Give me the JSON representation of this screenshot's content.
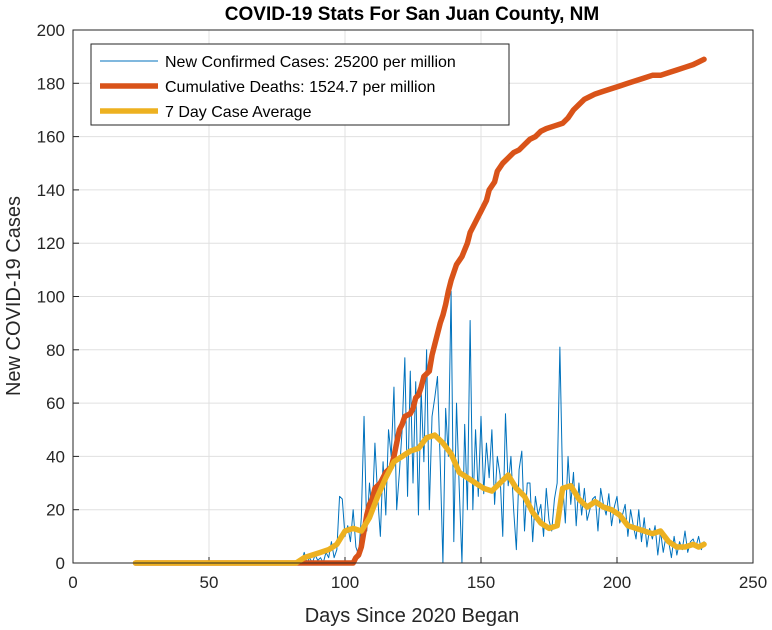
{
  "chart_data": {
    "type": "line",
    "title": "COVID-19 Stats For San Juan County, NM",
    "xlabel": "Days Since 2020 Began",
    "ylabel": "New COVID-19 Cases",
    "xlim": [
      0,
      250
    ],
    "ylim": [
      0,
      200
    ],
    "xticks": [
      0,
      50,
      100,
      150,
      200,
      250
    ],
    "yticks": [
      0,
      20,
      40,
      60,
      80,
      100,
      120,
      140,
      160,
      180,
      200
    ],
    "grid": true,
    "legend_position": "top-left",
    "series": [
      {
        "name": "New Confirmed Cases: 25200 per million",
        "color": "#0072BD",
        "points": [
          [
            23,
            0
          ],
          [
            84,
            0
          ],
          [
            85,
            4
          ],
          [
            86,
            0
          ],
          [
            87,
            2
          ],
          [
            88,
            0
          ],
          [
            89,
            3
          ],
          [
            90,
            1
          ],
          [
            91,
            2
          ],
          [
            92,
            0
          ],
          [
            93,
            4
          ],
          [
            94,
            2
          ],
          [
            95,
            8
          ],
          [
            96,
            2
          ],
          [
            97,
            5
          ],
          [
            98,
            25
          ],
          [
            99,
            24
          ],
          [
            100,
            10
          ],
          [
            101,
            14
          ],
          [
            102,
            8
          ],
          [
            103,
            20
          ],
          [
            104,
            6
          ],
          [
            105,
            3
          ],
          [
            106,
            17
          ],
          [
            107,
            55
          ],
          [
            108,
            12
          ],
          [
            109,
            30
          ],
          [
            110,
            18
          ],
          [
            111,
            45
          ],
          [
            112,
            25
          ],
          [
            113,
            10
          ],
          [
            114,
            38
          ],
          [
            115,
            18
          ],
          [
            116,
            50
          ],
          [
            117,
            40
          ],
          [
            118,
            66
          ],
          [
            119,
            20
          ],
          [
            120,
            34
          ],
          [
            121,
            50
          ],
          [
            122,
            77
          ],
          [
            123,
            25
          ],
          [
            124,
            72
          ],
          [
            125,
            30
          ],
          [
            126,
            68
          ],
          [
            127,
            18
          ],
          [
            128,
            65
          ],
          [
            129,
            38
          ],
          [
            130,
            80
          ],
          [
            131,
            20
          ],
          [
            132,
            55
          ],
          [
            133,
            62
          ],
          [
            134,
            70
          ],
          [
            135,
            38
          ],
          [
            136,
            0
          ],
          [
            137,
            58
          ],
          [
            138,
            40
          ],
          [
            139,
            102
          ],
          [
            140,
            8
          ],
          [
            141,
            60
          ],
          [
            142,
            28
          ],
          [
            143,
            0
          ],
          [
            144,
            52
          ],
          [
            145,
            20
          ],
          [
            146,
            91
          ],
          [
            147,
            20
          ],
          [
            148,
            50
          ],
          [
            149,
            25
          ],
          [
            150,
            55
          ],
          [
            151,
            26
          ],
          [
            152,
            45
          ],
          [
            153,
            32
          ],
          [
            154,
            50
          ],
          [
            155,
            22
          ],
          [
            156,
            40
          ],
          [
            157,
            33
          ],
          [
            158,
            10
          ],
          [
            159,
            56
          ],
          [
            160,
            29
          ],
          [
            161,
            40
          ],
          [
            162,
            20
          ],
          [
            163,
            5
          ],
          [
            164,
            35
          ],
          [
            165,
            42
          ],
          [
            166,
            12
          ],
          [
            167,
            30
          ],
          [
            168,
            30
          ],
          [
            169,
            8
          ],
          [
            170,
            25
          ],
          [
            171,
            18
          ],
          [
            172,
            22
          ],
          [
            173,
            10
          ],
          [
            174,
            28
          ],
          [
            175,
            16
          ],
          [
            176,
            12
          ],
          [
            177,
            24
          ],
          [
            178,
            30
          ],
          [
            179,
            81
          ],
          [
            180,
            30
          ],
          [
            181,
            15
          ],
          [
            182,
            40
          ],
          [
            183,
            22
          ],
          [
            184,
            34
          ],
          [
            185,
            14
          ],
          [
            186,
            30
          ],
          [
            187,
            18
          ],
          [
            188,
            28
          ],
          [
            189,
            16
          ],
          [
            190,
            20
          ],
          [
            191,
            24
          ],
          [
            192,
            25
          ],
          [
            193,
            12
          ],
          [
            194,
            28
          ],
          [
            195,
            22
          ],
          [
            196,
            18
          ],
          [
            197,
            26
          ],
          [
            198,
            14
          ],
          [
            199,
            21
          ],
          [
            200,
            25
          ],
          [
            201,
            15
          ],
          [
            202,
            18
          ],
          [
            203,
            22
          ],
          [
            204,
            10
          ],
          [
            205,
            20
          ],
          [
            206,
            14
          ],
          [
            207,
            9
          ],
          [
            208,
            20
          ],
          [
            209,
            8
          ],
          [
            210,
            17
          ],
          [
            211,
            6
          ],
          [
            212,
            13
          ],
          [
            213,
            9
          ],
          [
            214,
            14
          ],
          [
            215,
            3
          ],
          [
            216,
            12
          ],
          [
            217,
            4
          ],
          [
            218,
            10
          ],
          [
            219,
            8
          ],
          [
            220,
            2
          ],
          [
            221,
            10
          ],
          [
            222,
            3
          ],
          [
            223,
            8
          ],
          [
            224,
            5
          ],
          [
            225,
            12
          ],
          [
            226,
            4
          ],
          [
            227,
            8
          ],
          [
            228,
            9
          ],
          [
            229,
            6
          ],
          [
            230,
            10
          ],
          [
            231,
            5
          ],
          [
            232,
            8
          ]
        ]
      },
      {
        "name": "Cumulative Deaths: 1524.7 per million",
        "color": "#D95319",
        "points": [
          [
            23,
            0
          ],
          [
            103,
            0
          ],
          [
            104,
            2
          ],
          [
            105,
            3
          ],
          [
            106,
            6
          ],
          [
            107,
            12
          ],
          [
            108,
            18
          ],
          [
            109,
            22
          ],
          [
            110,
            24
          ],
          [
            111,
            28
          ],
          [
            113,
            30
          ],
          [
            115,
            34
          ],
          [
            117,
            36
          ],
          [
            118,
            40
          ],
          [
            119,
            45
          ],
          [
            120,
            50
          ],
          [
            121,
            52
          ],
          [
            122,
            55
          ],
          [
            124,
            56
          ],
          [
            125,
            58
          ],
          [
            126,
            62
          ],
          [
            127,
            63
          ],
          [
            128,
            66
          ],
          [
            129,
            70
          ],
          [
            130,
            71
          ],
          [
            131,
            72
          ],
          [
            132,
            78
          ],
          [
            133,
            82
          ],
          [
            134,
            86
          ],
          [
            135,
            90
          ],
          [
            136,
            93
          ],
          [
            137,
            97
          ],
          [
            138,
            102
          ],
          [
            139,
            106
          ],
          [
            140,
            109
          ],
          [
            141,
            112
          ],
          [
            143,
            115
          ],
          [
            145,
            120
          ],
          [
            146,
            124
          ],
          [
            148,
            128
          ],
          [
            149,
            130
          ],
          [
            150,
            132
          ],
          [
            152,
            136
          ],
          [
            153,
            140
          ],
          [
            155,
            143
          ],
          [
            156,
            147
          ],
          [
            158,
            150
          ],
          [
            160,
            152
          ],
          [
            162,
            154
          ],
          [
            164,
            155
          ],
          [
            166,
            157
          ],
          [
            168,
            159
          ],
          [
            170,
            160
          ],
          [
            172,
            162
          ],
          [
            174,
            163
          ],
          [
            177,
            164
          ],
          [
            180,
            165
          ],
          [
            182,
            167
          ],
          [
            184,
            170
          ],
          [
            186,
            172
          ],
          [
            188,
            174
          ],
          [
            190,
            175
          ],
          [
            192,
            176
          ],
          [
            195,
            177
          ],
          [
            198,
            178
          ],
          [
            201,
            179
          ],
          [
            204,
            180
          ],
          [
            207,
            181
          ],
          [
            210,
            182
          ],
          [
            213,
            183
          ],
          [
            216,
            183
          ],
          [
            219,
            184
          ],
          [
            222,
            185
          ],
          [
            225,
            186
          ],
          [
            228,
            187
          ],
          [
            230,
            188
          ],
          [
            232,
            189
          ]
        ]
      },
      {
        "name": "7 Day Case Average",
        "color": "#EDB120",
        "points": [
          [
            23,
            0
          ],
          [
            82,
            0
          ],
          [
            85,
            2
          ],
          [
            88,
            3
          ],
          [
            91,
            4
          ],
          [
            94,
            5
          ],
          [
            97,
            7
          ],
          [
            100,
            12
          ],
          [
            103,
            13
          ],
          [
            106,
            12
          ],
          [
            109,
            17
          ],
          [
            112,
            25
          ],
          [
            115,
            32
          ],
          [
            118,
            38
          ],
          [
            121,
            40
          ],
          [
            124,
            42
          ],
          [
            127,
            43
          ],
          [
            130,
            47
          ],
          [
            133,
            48
          ],
          [
            136,
            45
          ],
          [
            139,
            41
          ],
          [
            142,
            34
          ],
          [
            145,
            32
          ],
          [
            148,
            30
          ],
          [
            151,
            28
          ],
          [
            154,
            27
          ],
          [
            157,
            30
          ],
          [
            160,
            33
          ],
          [
            163,
            28
          ],
          [
            166,
            25
          ],
          [
            169,
            19
          ],
          [
            172,
            15
          ],
          [
            175,
            13
          ],
          [
            178,
            14
          ],
          [
            180,
            28
          ],
          [
            183,
            29
          ],
          [
            186,
            24
          ],
          [
            189,
            21
          ],
          [
            192,
            23
          ],
          [
            195,
            21
          ],
          [
            198,
            20
          ],
          [
            201,
            18
          ],
          [
            204,
            14
          ],
          [
            207,
            13
          ],
          [
            210,
            12
          ],
          [
            213,
            11
          ],
          [
            216,
            12
          ],
          [
            219,
            8
          ],
          [
            222,
            6
          ],
          [
            225,
            6
          ],
          [
            228,
            7
          ],
          [
            230,
            6
          ],
          [
            232,
            7
          ]
        ]
      }
    ]
  }
}
